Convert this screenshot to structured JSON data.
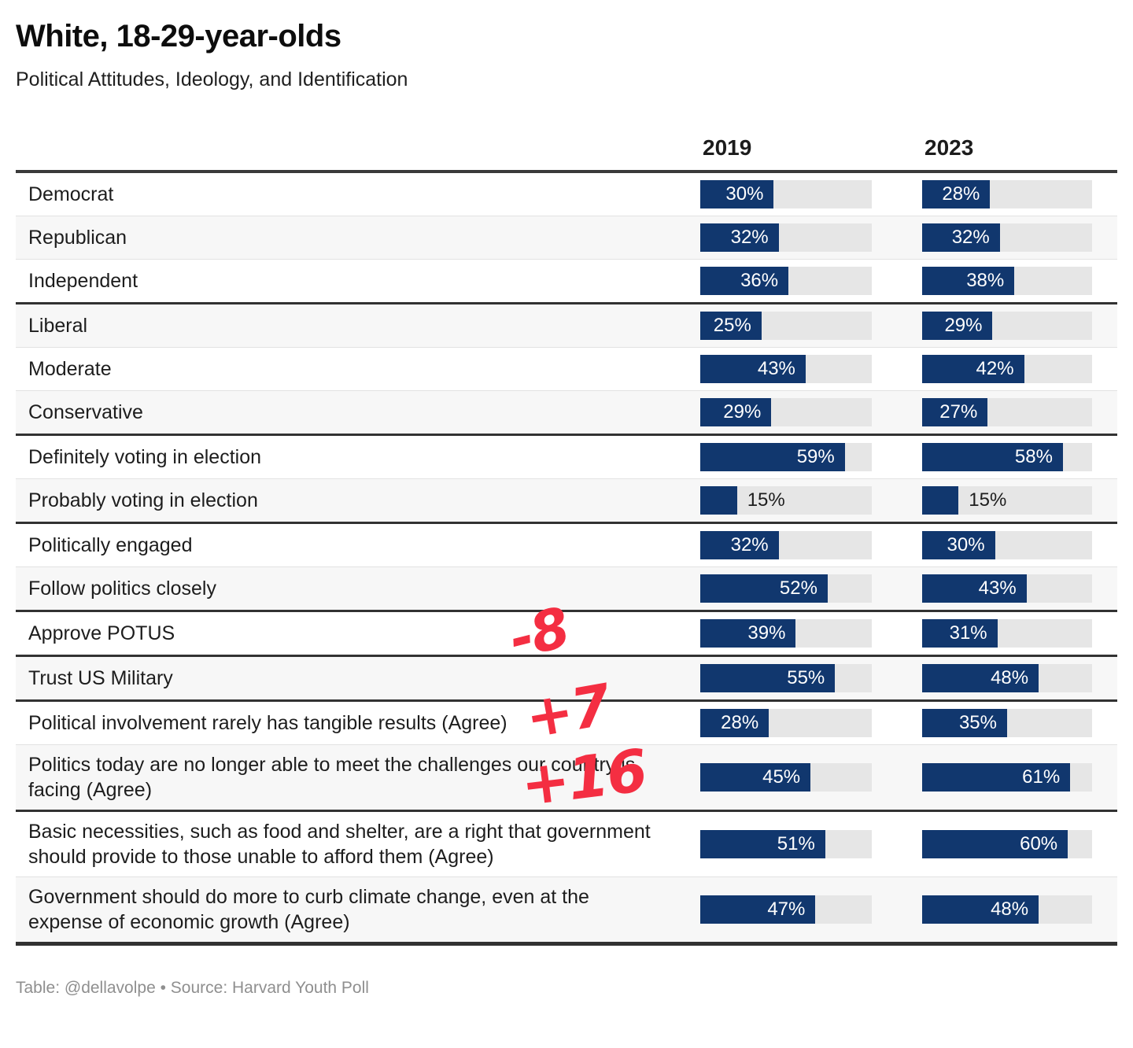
{
  "header": {
    "title": "White, 18-29-year-olds",
    "subtitle": "Political Attitudes, Ideology, and Identification"
  },
  "chart_data": {
    "type": "bar",
    "orientation": "horizontal",
    "title": "White, 18-29-year-olds",
    "subtitle": "Political Attitudes, Ideology, and Identification",
    "unit": "%",
    "xlim": [
      0,
      70
    ],
    "grid": false,
    "legend_position": "column-headers",
    "categories": [
      "Democrat",
      "Republican",
      "Independent",
      "Liberal",
      "Moderate",
      "Conservative",
      "Definitely voting in election",
      "Probably voting in election",
      "Politically engaged",
      "Follow politics closely",
      "Approve POTUS",
      "Trust US Military",
      "Political involvement rarely has tangible results (Agree)",
      "Politics today are no longer able to meet the challenges our country is facing (Agree)",
      "Basic necessities, such as food and shelter, are a right that government should provide to those unable to afford them (Agree)",
      "Government should do more to curb climate change, even at the expense of economic growth (Agree)"
    ],
    "groups": [
      1,
      1,
      1,
      2,
      2,
      2,
      3,
      3,
      4,
      4,
      5,
      6,
      7,
      7,
      8,
      8
    ],
    "series": [
      {
        "name": "2019",
        "values": [
          30,
          32,
          36,
          25,
          43,
          29,
          59,
          15,
          32,
          52,
          39,
          55,
          28,
          45,
          51,
          47
        ]
      },
      {
        "name": "2023",
        "values": [
          28,
          32,
          38,
          29,
          42,
          27,
          58,
          15,
          30,
          43,
          31,
          48,
          35,
          61,
          60,
          48
        ]
      }
    ],
    "value_label_inside_threshold": 20
  },
  "annotations": [
    {
      "text": "-8",
      "near_row": "Approve POTUS"
    },
    {
      "text": "+7",
      "near_row": "Political involvement rarely has tangible results (Agree)"
    },
    {
      "text": "+16",
      "near_row": "Politics today are no longer able to meet the challenges our country is facing (Agree)"
    }
  ],
  "footer": {
    "text": "Table: @dellavolpe • Source: Harvard Youth Poll"
  },
  "colors": {
    "bar": "#11376e",
    "bar_value_inside": "#ffffff",
    "bar_value_outside": "#1d1d1d",
    "track": "#e6e6e6",
    "alt_row": "#f7f7f7",
    "rule_heavy": "#323232",
    "rule_light": "#e2e2e2",
    "annotation_red": "#f42e42",
    "footer_text": "#8f8f8f"
  }
}
